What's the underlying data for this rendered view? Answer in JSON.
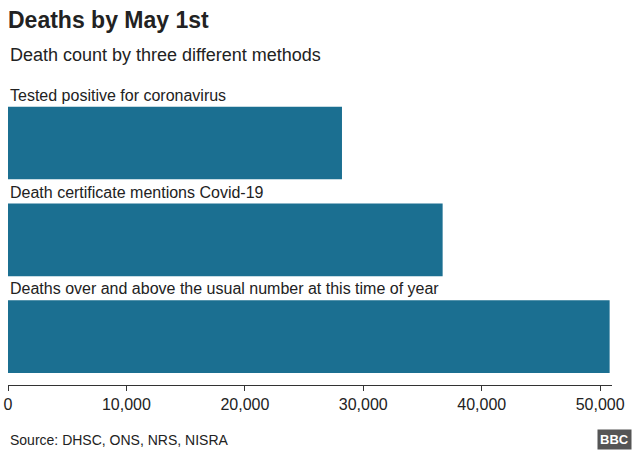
{
  "chart_data": {
    "type": "bar",
    "orientation": "horizontal",
    "title": "Deaths by May 1st",
    "subtitle": "Death count by three different methods",
    "categories": [
      "Tested positive for coronavirus",
      "Death certificate mentions Covid-19",
      "Deaths over and above the usual number at this time of year"
    ],
    "values": [
      28200,
      36700,
      50800
    ],
    "color": "#1b6f91",
    "xlim": [
      0,
      51000
    ],
    "xticks": [
      0,
      {
        "value": 10000,
        "label": "10,000"
      },
      {
        "value": 20000,
        "label": "20,000"
      },
      {
        "value": 30000,
        "label": "30,000"
      },
      {
        "value": 40000,
        "label": "40,000"
      },
      {
        "value": 50000,
        "label": "50,000"
      }
    ],
    "grid": false,
    "tick_labels": "x",
    "annotations": [
      "Source: DHSC, ONS, NRS, NISRA",
      "BBC"
    ]
  }
}
